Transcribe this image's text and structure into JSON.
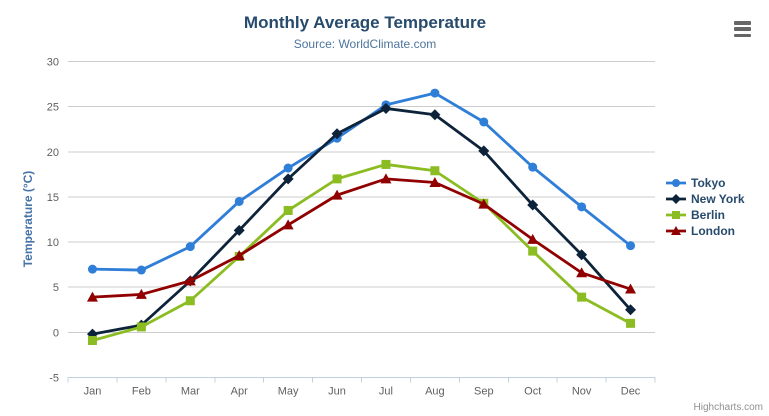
{
  "header": {
    "title": "Monthly Average Temperature",
    "subtitle": "Source: WorldClimate.com"
  },
  "icons": {
    "export_menu": "hamburger-menu-icon"
  },
  "credit_label": "Highcharts.com",
  "colors": {
    "title": "#274b6d",
    "subtitle": "#4d759e",
    "y_axis_title": "#4572a7",
    "axis_labels": "#606060",
    "gridline": "#cccccc",
    "axis_line": "#c0d0e0",
    "legend_text": "#274b6d",
    "export_icon": "#666666"
  },
  "chart_data": {
    "type": "line",
    "title": "Monthly Average Temperature",
    "subtitle": "Source: WorldClimate.com",
    "xlabel": "",
    "ylabel": "Temperature (°C)",
    "categories": [
      "Jan",
      "Feb",
      "Mar",
      "Apr",
      "May",
      "Jun",
      "Jul",
      "Aug",
      "Sep",
      "Oct",
      "Nov",
      "Dec"
    ],
    "ylim": [
      -5,
      30
    ],
    "yticks": [
      -5,
      0,
      5,
      10,
      15,
      20,
      25,
      30
    ],
    "grid": true,
    "legend_position": "right",
    "series": [
      {
        "name": "Tokyo",
        "color": "#2f7ed8",
        "marker": "circle",
        "values": [
          7.0,
          6.9,
          9.5,
          14.5,
          18.2,
          21.5,
          25.2,
          26.5,
          23.3,
          18.3,
          13.9,
          9.6
        ]
      },
      {
        "name": "New York",
        "color": "#0d233a",
        "marker": "diamond",
        "values": [
          -0.2,
          0.8,
          5.7,
          11.3,
          17.0,
          22.0,
          24.8,
          24.1,
          20.1,
          14.1,
          8.6,
          2.5
        ]
      },
      {
        "name": "Berlin",
        "color": "#8bbc21",
        "marker": "square",
        "values": [
          -0.9,
          0.6,
          3.5,
          8.4,
          13.5,
          17.0,
          18.6,
          17.9,
          14.3,
          9.0,
          3.9,
          1.0
        ]
      },
      {
        "name": "London",
        "color": "#910000",
        "marker": "triangle",
        "values": [
          3.9,
          4.2,
          5.7,
          8.5,
          11.9,
          15.2,
          17.0,
          16.6,
          14.2,
          10.3,
          6.6,
          4.8
        ]
      }
    ]
  }
}
